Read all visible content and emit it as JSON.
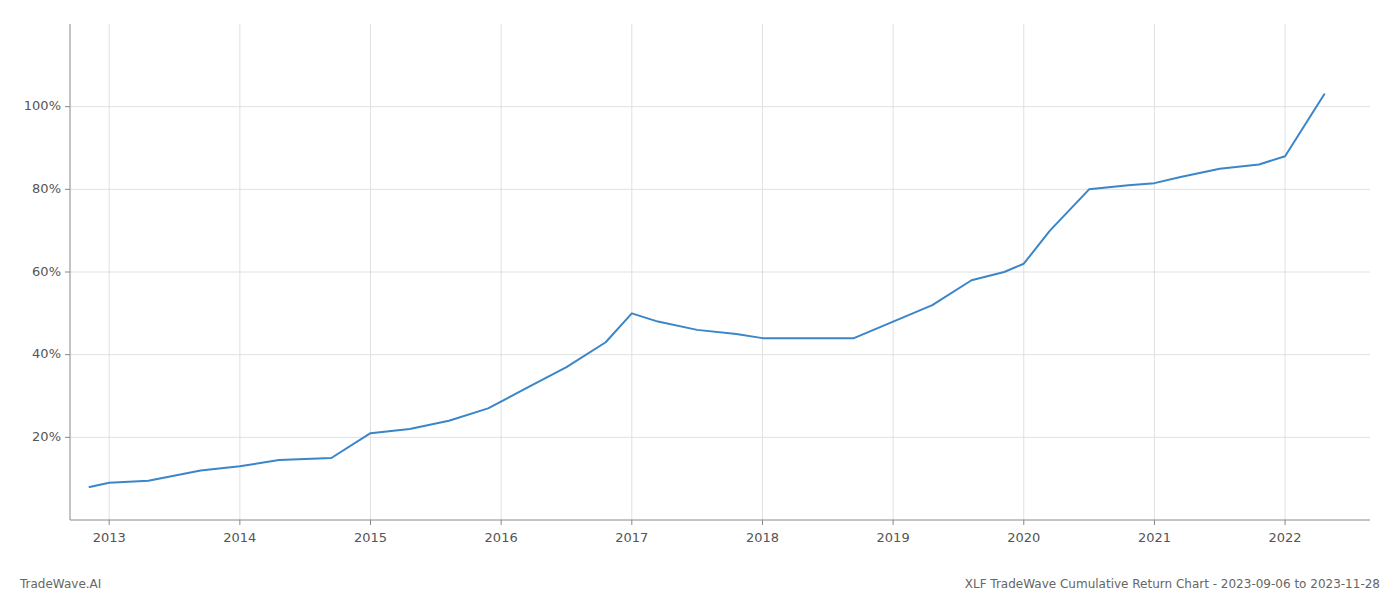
{
  "chart_data": {
    "type": "line",
    "x": [
      2012.85,
      2013.0,
      2013.3,
      2013.7,
      2014.0,
      2014.3,
      2014.7,
      2015.0,
      2015.3,
      2015.6,
      2015.9,
      2016.2,
      2016.5,
      2016.8,
      2017.0,
      2017.2,
      2017.5,
      2017.8,
      2018.0,
      2018.3,
      2018.7,
      2019.0,
      2019.3,
      2019.6,
      2019.85,
      2020.0,
      2020.2,
      2020.5,
      2020.8,
      2021.0,
      2021.2,
      2021.5,
      2021.8,
      2022.0,
      2022.3
    ],
    "values": [
      8,
      9,
      9.5,
      12,
      13,
      14.5,
      15,
      21,
      22,
      24,
      27,
      32,
      37,
      43,
      50,
      48,
      46,
      45,
      44,
      44,
      44,
      48,
      52,
      58,
      60,
      62,
      70,
      80,
      81,
      81.5,
      83,
      85,
      86,
      88,
      103
    ],
    "color": "#3a86c8",
    "xlim": [
      2012.7,
      2022.65
    ],
    "ylim": [
      0,
      120
    ],
    "xticks": [
      2013,
      2014,
      2015,
      2016,
      2017,
      2018,
      2019,
      2020,
      2021,
      2022
    ],
    "yticks": [
      {
        "value": 20,
        "label": "20%"
      },
      {
        "value": 40,
        "label": "40%"
      },
      {
        "value": 60,
        "label": "60%"
      },
      {
        "value": 80,
        "label": "80%"
      },
      {
        "value": 100,
        "label": "100%"
      }
    ],
    "grid": true,
    "annotations": [
      "TradeWave.AI",
      "XLF TradeWave Cumulative Return Chart - 2023-09-06 to 2023-11-28"
    ]
  }
}
